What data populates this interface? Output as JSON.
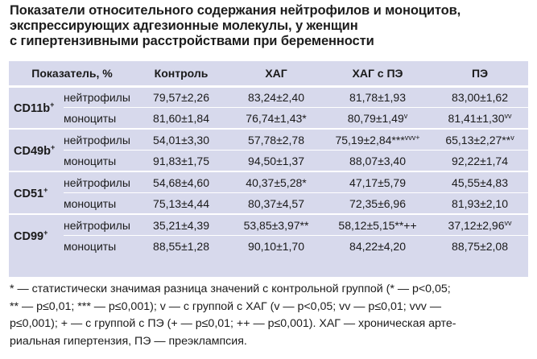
{
  "title_lines": [
    "Показатели относительного содержания нейтрофилов и моноцитов,",
    "экспрессирующих адгезионные молекулы, у женщин",
    "с гипертензивными расстройствами при беременности"
  ],
  "headers": {
    "indicator": "Показатель, %",
    "control": "Контроль",
    "hag": "ХАГ",
    "hag_pe": "ХАГ с ПЭ",
    "pe": "ПЭ"
  },
  "groups": [
    {
      "name": "CD11b",
      "sup": "+",
      "rows": [
        {
          "label": "нейтрофилы",
          "values": [
            [
              "79,57±2,26",
              ""
            ],
            [
              "83,24±2,40",
              ""
            ],
            [
              "81,78±1,93",
              ""
            ],
            [
              "83,00±1,62",
              ""
            ]
          ]
        },
        {
          "label": "моноциты",
          "values": [
            [
              "81,60±1,84",
              ""
            ],
            [
              "76,74±1,43*",
              ""
            ],
            [
              "80,79±1,49",
              "v"
            ],
            [
              "81,41±1,30",
              "vv"
            ]
          ]
        }
      ]
    },
    {
      "name": "CD49b",
      "sup": "+",
      "rows": [
        {
          "label": "нейтрофилы",
          "values": [
            [
              "54,01±3,30",
              ""
            ],
            [
              "57,78±2,78",
              ""
            ],
            [
              "75,19±2,84***",
              "vvv+"
            ],
            [
              "65,13±2,27**",
              "v"
            ]
          ]
        },
        {
          "label": "моноциты",
          "values": [
            [
              "91,83±1,75",
              ""
            ],
            [
              "94,50±1,37",
              ""
            ],
            [
              "88,07±3,40",
              ""
            ],
            [
              "92,22±1,74",
              ""
            ]
          ]
        }
      ]
    },
    {
      "name": "CD51",
      "sup": "+",
      "rows": [
        {
          "label": "нейтрофилы",
          "values": [
            [
              "54,68±4,60",
              ""
            ],
            [
              "40,37±5,28*",
              ""
            ],
            [
              "47,17±5,79",
              ""
            ],
            [
              "45,55±4,83",
              ""
            ]
          ]
        },
        {
          "label": "моноциты",
          "values": [
            [
              "75,13±4,44",
              ""
            ],
            [
              "80,37±4,57",
              ""
            ],
            [
              "72,35±6,96",
              ""
            ],
            [
              "81,93±2,10",
              ""
            ]
          ]
        }
      ]
    },
    {
      "name": "CD99",
      "sup": "+",
      "rows": [
        {
          "label": "нейтрофилы",
          "values": [
            [
              "35,21±4,39",
              ""
            ],
            [
              "53,85±3,97**",
              ""
            ],
            [
              "58,12±5,15**++",
              ""
            ],
            [
              "37,12±2,96",
              "vv"
            ]
          ]
        },
        {
          "label": "моноциты",
          "values": [
            [
              "88,55±1,28",
              ""
            ],
            [
              "90,10±1,70",
              ""
            ],
            [
              "84,22±4,20",
              ""
            ],
            [
              "88,75±2,08",
              ""
            ]
          ]
        }
      ]
    }
  ],
  "footnote_lines": [
    "* — статистически значимая разница значений с контрольной группой (* — p<0,05;",
    "** — p≤0,01; *** — p≤0,001); v — с группой с ХАГ (v — p<0,05; vv — p≤0,01; vvv —",
    "p≤0,001); + — с группой с ПЭ (+ — p≤0,01; ++ — p≤0,001). ХАГ — хроническая арте-",
    "риальная гипертензия, ПЭ — преэклампсия."
  ]
}
